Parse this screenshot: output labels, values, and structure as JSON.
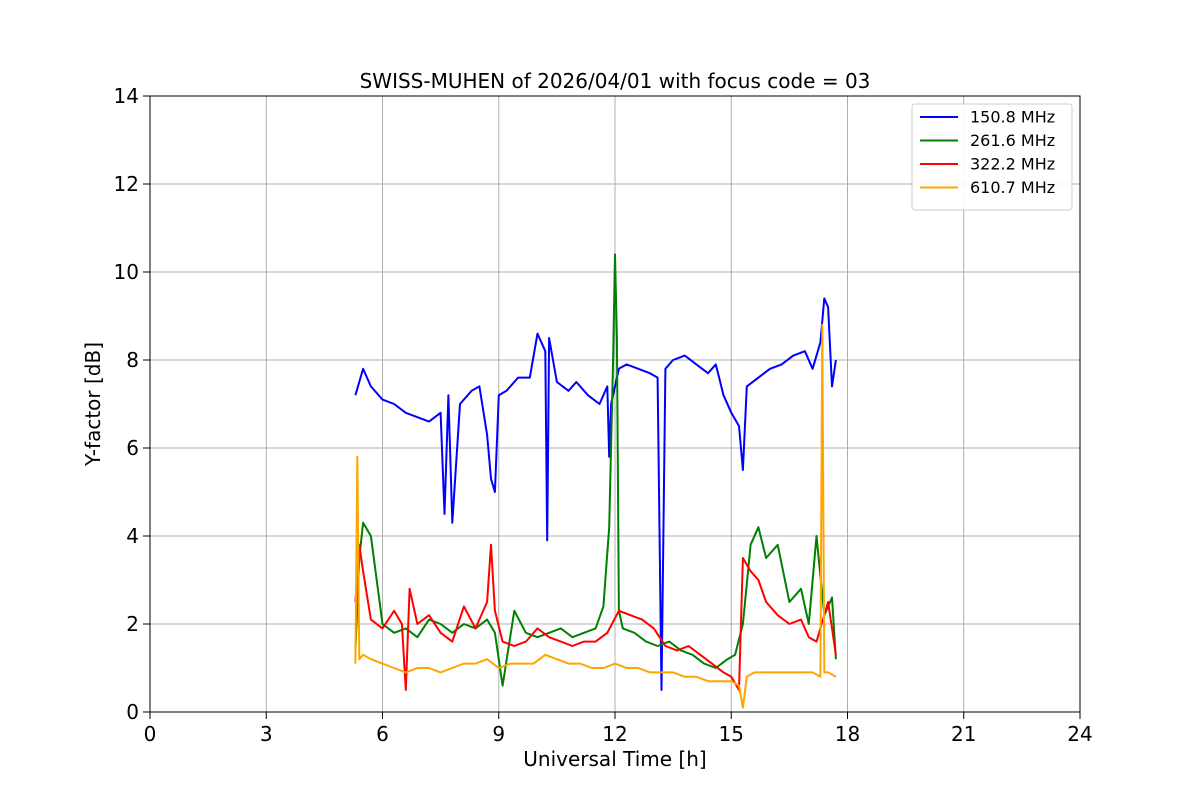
{
  "chart_data": {
    "type": "line",
    "title": "SWISS-MUHEN of 2026/04/01 with focus code = 03",
    "xlabel": "Universal Time [h]",
    "ylabel": "Y-factor [dB]",
    "xlim": [
      0,
      24
    ],
    "ylim": [
      0,
      14
    ],
    "xticks": [
      0,
      3,
      6,
      9,
      12,
      15,
      18,
      21,
      24
    ],
    "yticks": [
      0,
      2,
      4,
      6,
      8,
      10,
      12,
      14
    ],
    "grid": true,
    "legend_position": "top-right",
    "series": [
      {
        "name": "150.8 MHz",
        "color": "#0000ff",
        "x": [
          5.3,
          5.5,
          5.7,
          6.0,
          6.3,
          6.6,
          6.9,
          7.2,
          7.5,
          7.6,
          7.7,
          7.8,
          8.0,
          8.3,
          8.5,
          8.7,
          8.8,
          8.9,
          9.0,
          9.2,
          9.5,
          9.8,
          10.0,
          10.2,
          10.25,
          10.3,
          10.5,
          10.8,
          11.0,
          11.3,
          11.6,
          11.8,
          11.85,
          11.9,
          12.1,
          12.3,
          12.6,
          12.9,
          13.1,
          13.2,
          13.3,
          13.5,
          13.8,
          14.1,
          14.4,
          14.6,
          14.8,
          15.0,
          15.2,
          15.3,
          15.4,
          15.7,
          16.0,
          16.3,
          16.6,
          16.9,
          17.1,
          17.3,
          17.4,
          17.5,
          17.6,
          17.7
        ],
        "values": [
          7.2,
          7.8,
          7.4,
          7.1,
          7.0,
          6.8,
          6.7,
          6.6,
          6.8,
          4.5,
          7.2,
          4.3,
          7.0,
          7.3,
          7.4,
          6.3,
          5.3,
          5.0,
          7.2,
          7.3,
          7.6,
          7.6,
          8.6,
          8.2,
          3.9,
          8.5,
          7.5,
          7.3,
          7.5,
          7.2,
          7.0,
          7.4,
          5.8,
          7.0,
          7.8,
          7.9,
          7.8,
          7.7,
          7.6,
          0.5,
          7.8,
          8.0,
          8.1,
          7.9,
          7.7,
          7.9,
          7.2,
          6.8,
          6.5,
          5.5,
          7.4,
          7.6,
          7.8,
          7.9,
          8.1,
          8.2,
          7.8,
          8.4,
          9.4,
          9.2,
          7.4,
          8.0
        ]
      },
      {
        "name": "261.6 MHz",
        "color": "#008000",
        "x": [
          5.3,
          5.4,
          5.5,
          5.7,
          6.0,
          6.3,
          6.6,
          6.9,
          7.2,
          7.5,
          7.8,
          8.1,
          8.4,
          8.7,
          8.9,
          9.1,
          9.4,
          9.7,
          10.0,
          10.3,
          10.6,
          10.9,
          11.2,
          11.5,
          11.7,
          11.85,
          11.95,
          12.0,
          12.05,
          12.1,
          12.2,
          12.5,
          12.8,
          13.1,
          13.4,
          13.7,
          14.0,
          14.3,
          14.6,
          14.9,
          15.1,
          15.3,
          15.5,
          15.7,
          15.9,
          16.2,
          16.5,
          16.8,
          17.0,
          17.2,
          17.4,
          17.6,
          17.7
        ],
        "values": [
          1.4,
          3.5,
          4.3,
          4.0,
          2.0,
          1.8,
          1.9,
          1.7,
          2.1,
          2.0,
          1.8,
          2.0,
          1.9,
          2.1,
          1.8,
          0.6,
          2.3,
          1.8,
          1.7,
          1.8,
          1.9,
          1.7,
          1.8,
          1.9,
          2.4,
          4.2,
          8.0,
          10.4,
          8.5,
          2.3,
          1.9,
          1.8,
          1.6,
          1.5,
          1.6,
          1.4,
          1.3,
          1.1,
          1.0,
          1.2,
          1.3,
          2.0,
          3.8,
          4.2,
          3.5,
          3.8,
          2.5,
          2.8,
          2.0,
          4.0,
          2.2,
          2.6,
          1.2
        ]
      },
      {
        "name": "322.2 MHz",
        "color": "#ff0000",
        "x": [
          5.3,
          5.4,
          5.5,
          5.7,
          6.0,
          6.3,
          6.5,
          6.6,
          6.7,
          6.9,
          7.2,
          7.5,
          7.8,
          8.1,
          8.4,
          8.7,
          8.8,
          8.9,
          9.1,
          9.4,
          9.7,
          10.0,
          10.3,
          10.6,
          10.9,
          11.2,
          11.5,
          11.8,
          12.1,
          12.4,
          12.7,
          13.0,
          13.3,
          13.6,
          13.9,
          14.2,
          14.5,
          14.8,
          15.0,
          15.2,
          15.3,
          15.5,
          15.7,
          15.9,
          16.2,
          16.5,
          16.8,
          17.0,
          17.2,
          17.5,
          17.7
        ],
        "values": [
          2.5,
          3.8,
          3.2,
          2.1,
          1.9,
          2.3,
          2.0,
          0.5,
          2.8,
          2.0,
          2.2,
          1.8,
          1.6,
          2.4,
          1.9,
          2.5,
          3.8,
          2.3,
          1.6,
          1.5,
          1.6,
          1.9,
          1.7,
          1.6,
          1.5,
          1.6,
          1.6,
          1.8,
          2.3,
          2.2,
          2.1,
          1.9,
          1.5,
          1.4,
          1.5,
          1.3,
          1.1,
          0.9,
          0.8,
          0.5,
          3.5,
          3.2,
          3.0,
          2.5,
          2.2,
          2.0,
          2.1,
          1.7,
          1.6,
          2.5,
          1.3
        ]
      },
      {
        "name": "610.7 MHz",
        "color": "#ffa500",
        "x": [
          5.3,
          5.35,
          5.4,
          5.5,
          5.7,
          6.0,
          6.3,
          6.6,
          6.9,
          7.2,
          7.5,
          7.8,
          8.1,
          8.4,
          8.7,
          9.0,
          9.3,
          9.6,
          9.9,
          10.2,
          10.5,
          10.8,
          11.1,
          11.4,
          11.7,
          12.0,
          12.3,
          12.6,
          12.9,
          13.2,
          13.5,
          13.8,
          14.1,
          14.4,
          14.7,
          15.0,
          15.2,
          15.3,
          15.4,
          15.6,
          15.9,
          16.2,
          16.5,
          16.8,
          17.1,
          17.3,
          17.35,
          17.4,
          17.5,
          17.7
        ],
        "values": [
          1.1,
          5.8,
          1.2,
          1.3,
          1.2,
          1.1,
          1.0,
          0.9,
          1.0,
          1.0,
          0.9,
          1.0,
          1.1,
          1.1,
          1.2,
          1.0,
          1.1,
          1.1,
          1.1,
          1.3,
          1.2,
          1.1,
          1.1,
          1.0,
          1.0,
          1.1,
          1.0,
          1.0,
          0.9,
          0.9,
          0.9,
          0.8,
          0.8,
          0.7,
          0.7,
          0.7,
          0.6,
          0.1,
          0.8,
          0.9,
          0.9,
          0.9,
          0.9,
          0.9,
          0.9,
          0.8,
          8.8,
          0.9,
          0.9,
          0.8
        ]
      }
    ]
  }
}
